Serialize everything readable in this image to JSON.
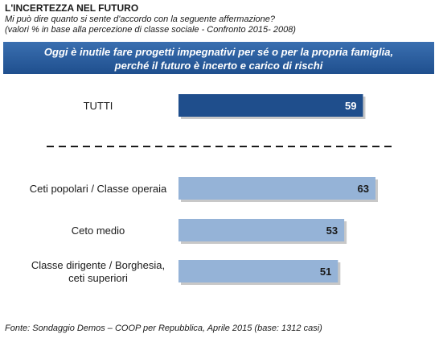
{
  "title": "L'INCERTEZZA NEL FUTURO",
  "subtitle_line1": "Mi può dire quanto si sente d'accordo con la seguente affermazione?",
  "subtitle_line2": "(valori % in base alla percezione di classe sociale - Confronto 2015- 2008)",
  "banner_line1": "Oggi è inutile fare progetti impegnativi per sé o per la propria famiglia,",
  "banner_line2": "perché il futuro è incerto e carico di rischi",
  "footer": "Fonte: Sondaggio Demos – COOP per Repubblica, Aprile 2015 (base: 1312 casi)",
  "colors": {
    "banner": "#2a5c9e",
    "bar_total": "#1f4e8c",
    "bar_group": "#95b3d7",
    "value_total": "#ffffff",
    "value_group": "#1a1a1a"
  },
  "chart_data": {
    "type": "bar",
    "orientation": "horizontal",
    "categories": [
      [
        "TUTTI"
      ],
      [
        "Ceti popolari / Classe operaia"
      ],
      [
        "Ceto medio"
      ],
      [
        "Classe dirigente / Borghesia,",
        "ceti superiori"
      ]
    ],
    "values": [
      59,
      63,
      53,
      51
    ],
    "separator_after": 0
  }
}
